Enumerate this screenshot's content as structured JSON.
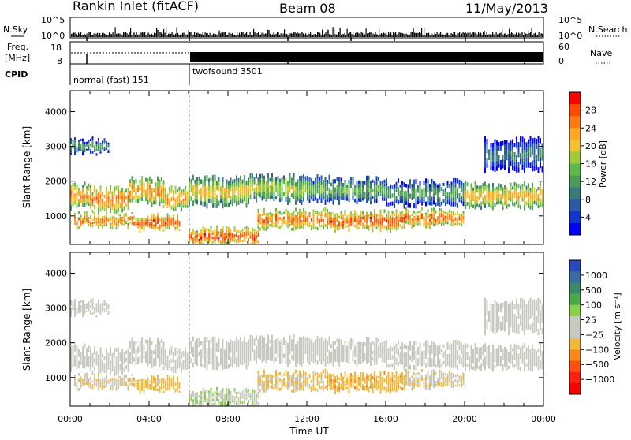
{
  "header": {
    "station": "Rankin Inlet (fitACF)",
    "beam": "Beam 08",
    "date": "11/May/2013"
  },
  "panels": {
    "nsky_label": "N.Sky",
    "nsky_ticks": [
      "10^5",
      "10^0"
    ],
    "nsearch_label": "N.Search",
    "nsearch_ticks": [
      "10^5",
      "10^0"
    ],
    "freq_label": "Freq.",
    "freq_unit": "[MHz]",
    "freq_ticks": [
      "18",
      "8"
    ],
    "nave_label": "Nave",
    "nave_ticks": [
      "60",
      "0"
    ],
    "cpid_label": "CPID",
    "cpid_modes": [
      {
        "name": "normal (fast) 151",
        "start_hour": 0
      },
      {
        "name": "twofsound 3501",
        "start_hour": 6
      }
    ]
  },
  "power_colorbar": {
    "label": "Power [dB]",
    "ticks": [
      "28",
      "24",
      "20",
      "16",
      "12",
      "8",
      "4"
    ],
    "colors": [
      "#ff0000",
      "#ff4a00",
      "#ff7a10",
      "#ffa820",
      "#f2c230",
      "#9ccc3a",
      "#5fb94a",
      "#4a9a5a",
      "#3a7a7a",
      "#2a5aa8",
      "#1038d0",
      "#0000ff"
    ]
  },
  "velocity_colorbar": {
    "label": "Velocity [m s⁻¹]",
    "ticks": [
      "1000",
      "500",
      "100",
      "25",
      "−25",
      "−100",
      "−500",
      "−1000"
    ],
    "colors": [
      "#2a48c0",
      "#3a6aa0",
      "#3a8a6a",
      "#4aa848",
      "#88d048",
      "#c8c8c0",
      "#c8c8c0",
      "#f0b838",
      "#ff8818",
      "#ff5010",
      "#ff2010",
      "#ff0000"
    ]
  },
  "xaxis": {
    "label": "Time UT",
    "ticks": [
      "00:00",
      "04:00",
      "08:00",
      "12:00",
      "16:00",
      "20:00",
      "00:00"
    ]
  },
  "yaxis": {
    "label": "Slant Range [km]",
    "ticks": [
      "1000",
      "2000",
      "3000",
      "4000"
    ]
  },
  "chart_data": {
    "type": "heatmap",
    "title": "Rankin Inlet (fitACF)",
    "xlabel": "Time UT",
    "ylabel": "Slant Range [km]",
    "xlim_hours": [
      0,
      24
    ],
    "ylim_km": [
      180,
      4600
    ],
    "power_scale_db": [
      0,
      32
    ],
    "velocity_scale_ms": [
      -1000,
      1000
    ],
    "mode_change_hour": 6,
    "echo_bands": [
      {
        "start_hour": 0.0,
        "end_hour": 1.0,
        "range_km": [
          1250,
          1950
        ],
        "power_db": 24,
        "velocity_ms": 0
      },
      {
        "start_hour": 1.0,
        "end_hour": 3.0,
        "range_km": [
          1150,
          1800
        ],
        "power_db": 26,
        "velocity_ms": 0
      },
      {
        "start_hour": 3.0,
        "end_hour": 4.7,
        "range_km": [
          1350,
          2050
        ],
        "power_db": 24,
        "velocity_ms": 0
      },
      {
        "start_hour": 4.7,
        "end_hour": 6.0,
        "range_km": [
          1200,
          1800
        ],
        "power_db": 24,
        "velocity_ms": 0
      },
      {
        "start_hour": 6.0,
        "end_hour": 9.0,
        "range_km": [
          1300,
          2100
        ],
        "power_db": 20,
        "velocity_ms": 0
      },
      {
        "start_hour": 9.0,
        "end_hour": 12.0,
        "range_km": [
          1400,
          2150
        ],
        "power_db": 18,
        "velocity_ms": 0
      },
      {
        "start_hour": 12.0,
        "end_hour": 16.0,
        "range_km": [
          1400,
          2100
        ],
        "power_db": 14,
        "velocity_ms": 0
      },
      {
        "start_hour": 16.0,
        "end_hour": 20.0,
        "range_km": [
          1300,
          2000
        ],
        "power_db": 12,
        "velocity_ms": 0
      },
      {
        "start_hour": 20.0,
        "end_hour": 24.0,
        "range_km": [
          1250,
          1900
        ],
        "power_db": 22,
        "velocity_ms": 0
      },
      {
        "start_hour": 0.2,
        "end_hour": 3.2,
        "range_km": [
          700,
          1050
        ],
        "power_db": 26,
        "velocity_ms": -150
      },
      {
        "start_hour": 3.2,
        "end_hour": 5.5,
        "range_km": [
          600,
          1000
        ],
        "power_db": 28,
        "velocity_ms": -250
      },
      {
        "start_hour": 6.0,
        "end_hour": 9.5,
        "range_km": [
          200,
          650
        ],
        "power_db": 28,
        "velocity_ms": 150
      },
      {
        "start_hour": 9.5,
        "end_hour": 13.0,
        "range_km": [
          650,
          1150
        ],
        "power_db": 26,
        "velocity_ms": -200
      },
      {
        "start_hour": 13.0,
        "end_hour": 17.0,
        "range_km": [
          600,
          1100
        ],
        "power_db": 28,
        "velocity_ms": -300
      },
      {
        "start_hour": 17.0,
        "end_hour": 20.0,
        "range_km": [
          700,
          1150
        ],
        "power_db": 26,
        "velocity_ms": -150
      },
      {
        "start_hour": 0.0,
        "end_hour": 2.0,
        "range_km": [
          2800,
          3200
        ],
        "power_db": 12,
        "velocity_ms": 0
      },
      {
        "start_hour": 21.0,
        "end_hour": 24.0,
        "range_km": [
          2300,
          3200
        ],
        "power_db": 8,
        "velocity_ms": 100
      }
    ]
  }
}
